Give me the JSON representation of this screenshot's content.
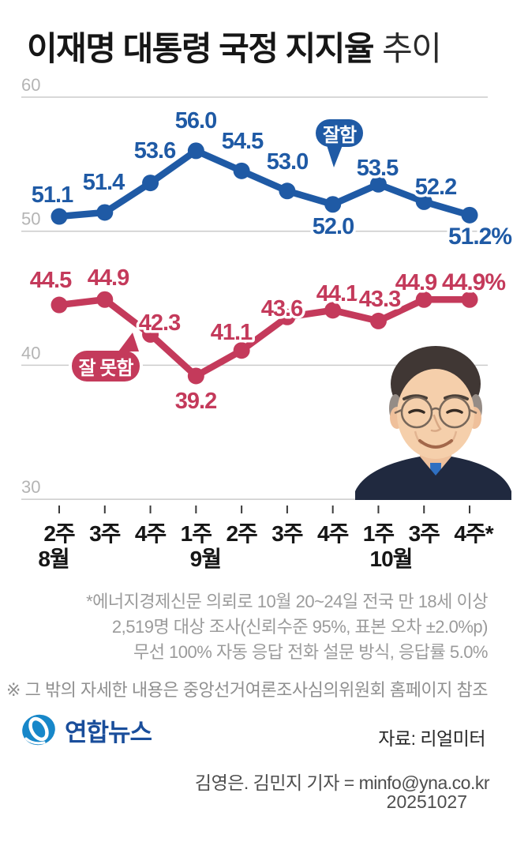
{
  "title": {
    "main": "이재명 대통령 국정 지지율",
    "suffix": "추이"
  },
  "colors": {
    "approve_blue": "#1f5aa5",
    "disapprove_red": "#c43a5b",
    "gridline_gray": "#cbcbcb",
    "axis_label_gray": "#b4b4b4",
    "logo_blue": "#1a4e9b",
    "logo_mark_blue": "#1787c9"
  },
  "chart_data": {
    "type": "line",
    "x_tick_labels": [
      "2주",
      "3주",
      "4주",
      "1주",
      "2주",
      "3주",
      "4주",
      "1주",
      "3주",
      "4주*"
    ],
    "month_labels": [
      {
        "text": "8월",
        "tick_index": 0,
        "dx": -7
      },
      {
        "text": "9월",
        "tick_index": 3,
        "dx": 12
      },
      {
        "text": "10월",
        "tick_index": 7,
        "dx": 16
      }
    ],
    "ylim": [
      30,
      60
    ],
    "y_ticks": [
      60,
      50,
      40,
      30
    ],
    "grid": true,
    "legend_position": "speech-bubbles-on-plot",
    "series": [
      {
        "name": "잘함",
        "color": "#1f5aa5",
        "values": [
          51.1,
          51.4,
          53.6,
          56.0,
          54.5,
          53.0,
          52.0,
          53.5,
          52.2,
          51.2
        ],
        "final_label": "51.2%"
      },
      {
        "name": "잘 못함",
        "color": "#c43a5b",
        "values": [
          44.5,
          44.9,
          42.3,
          39.2,
          41.1,
          43.6,
          44.1,
          43.3,
          44.9,
          44.9
        ],
        "final_label": "44.9%"
      }
    ]
  },
  "bubbles": {
    "good": "잘함",
    "bad": "잘 못함"
  },
  "survey_notes": [
    "*에너지경제신문 의뢰로 10월 20~24일 전국 만 18세 이상",
    "2,519명 대상 조사(신뢰수준 95%, 표본 오차 ±2.0%p)",
    "무선 100% 자동 응답 전화 설문 방식, 응답률 5.0%"
  ],
  "extra_note": "※ 그 밖의 자세한 내용은 중앙선거여론조사심의위원회 홈페이지 참조",
  "footer": {
    "logo_text": "연합뉴스",
    "source": "자료: 리얼미터",
    "credit": "김영은. 김민지 기자 = minfo@yna.co.kr",
    "date": "20251027"
  }
}
